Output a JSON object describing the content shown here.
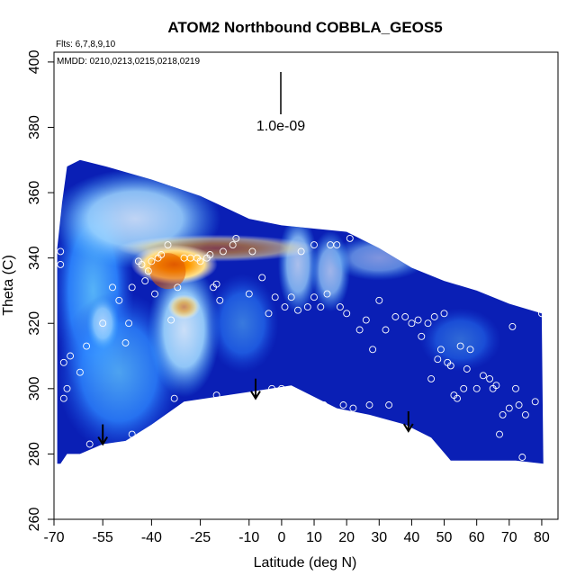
{
  "chart_data": {
    "type": "heatmap",
    "title": "ATOM2 Northbound COBBLA_GEOS5",
    "flights_label": "Flts: 6,7,8,9,10",
    "dates_label": "MMDD: 0210,0213,0215,0218,0219",
    "xlabel": "Latitude (deg N)",
    "ylabel": "Theta (C)",
    "xlim": [
      -70,
      85
    ],
    "ylim": [
      260,
      403
    ],
    "x_ticks": [
      -70,
      -55,
      -40,
      -25,
      -10,
      0,
      10,
      20,
      30,
      40,
      50,
      60,
      70,
      80
    ],
    "y_ticks": [
      260,
      280,
      300,
      320,
      340,
      360,
      380,
      400
    ],
    "scale_bar_label": "1.0e-09",
    "colors": {
      "background": "#0a1fb5",
      "edge": "#0000a8",
      "high": "#ff9a00",
      "peak": "#e05a00",
      "marker": "#ffffff"
    },
    "profile_markers_lat": [
      -55,
      -8,
      39
    ],
    "observations": [
      [
        -68,
        342
      ],
      [
        -68,
        338
      ],
      [
        -67,
        308
      ],
      [
        -66,
        300
      ],
      [
        -67,
        297
      ],
      [
        -65,
        310
      ],
      [
        -62,
        305
      ],
      [
        -60,
        313
      ],
      [
        -59,
        283
      ],
      [
        -57,
        370
      ],
      [
        -55,
        320
      ],
      [
        -52,
        331
      ],
      [
        -50,
        327
      ],
      [
        -48,
        314
      ],
      [
        -47,
        320
      ],
      [
        -46,
        331
      ],
      [
        -46,
        286
      ],
      [
        -44,
        339
      ],
      [
        -43,
        338
      ],
      [
        -42,
        333
      ],
      [
        -41,
        336
      ],
      [
        -40,
        339
      ],
      [
        -39,
        329
      ],
      [
        -38,
        340
      ],
      [
        -37,
        341
      ],
      [
        -35,
        344
      ],
      [
        -34,
        321
      ],
      [
        -33,
        297
      ],
      [
        -32,
        331
      ],
      [
        -30,
        340
      ],
      [
        -28,
        340
      ],
      [
        -26,
        340
      ],
      [
        -25,
        339
      ],
      [
        -23,
        340
      ],
      [
        -22,
        341
      ],
      [
        -21,
        331
      ],
      [
        -20,
        332
      ],
      [
        -20,
        298
      ],
      [
        -19,
        327
      ],
      [
        -18,
        342
      ],
      [
        -15,
        344
      ],
      [
        -14,
        346
      ],
      [
        -10,
        329
      ],
      [
        -9,
        342
      ],
      [
        -6,
        334
      ],
      [
        -4,
        323
      ],
      [
        -3,
        300
      ],
      [
        -2,
        328
      ],
      [
        0,
        300
      ],
      [
        1,
        325
      ],
      [
        3,
        328
      ],
      [
        5,
        324
      ],
      [
        6,
        342
      ],
      [
        7,
        290
      ],
      [
        8,
        325
      ],
      [
        10,
        328
      ],
      [
        10,
        344
      ],
      [
        12,
        325
      ],
      [
        13,
        295
      ],
      [
        14,
        329
      ],
      [
        15,
        344
      ],
      [
        17,
        344
      ],
      [
        18,
        325
      ],
      [
        19,
        295
      ],
      [
        20,
        323
      ],
      [
        21,
        346
      ],
      [
        22,
        294
      ],
      [
        24,
        318
      ],
      [
        26,
        321
      ],
      [
        27,
        295
      ],
      [
        28,
        312
      ],
      [
        30,
        327
      ],
      [
        31,
        344
      ],
      [
        32,
        318
      ],
      [
        33,
        295
      ],
      [
        35,
        322
      ],
      [
        37,
        344
      ],
      [
        38,
        322
      ],
      [
        40,
        320
      ],
      [
        42,
        321
      ],
      [
        43,
        316
      ],
      [
        45,
        320
      ],
      [
        46,
        303
      ],
      [
        47,
        322
      ],
      [
        48,
        309
      ],
      [
        49,
        312
      ],
      [
        50,
        323
      ],
      [
        51,
        308
      ],
      [
        52,
        307
      ],
      [
        53,
        298
      ],
      [
        54,
        297
      ],
      [
        55,
        313
      ],
      [
        56,
        300
      ],
      [
        57,
        306
      ],
      [
        58,
        312
      ],
      [
        60,
        300
      ],
      [
        62,
        304
      ],
      [
        64,
        303
      ],
      [
        65,
        300
      ],
      [
        66,
        301
      ],
      [
        67,
        286
      ],
      [
        68,
        292
      ],
      [
        70,
        294
      ],
      [
        71,
        319
      ],
      [
        72,
        300
      ],
      [
        73,
        295
      ],
      [
        74,
        279
      ],
      [
        75,
        292
      ],
      [
        78,
        296
      ],
      [
        80,
        323
      ]
    ]
  }
}
